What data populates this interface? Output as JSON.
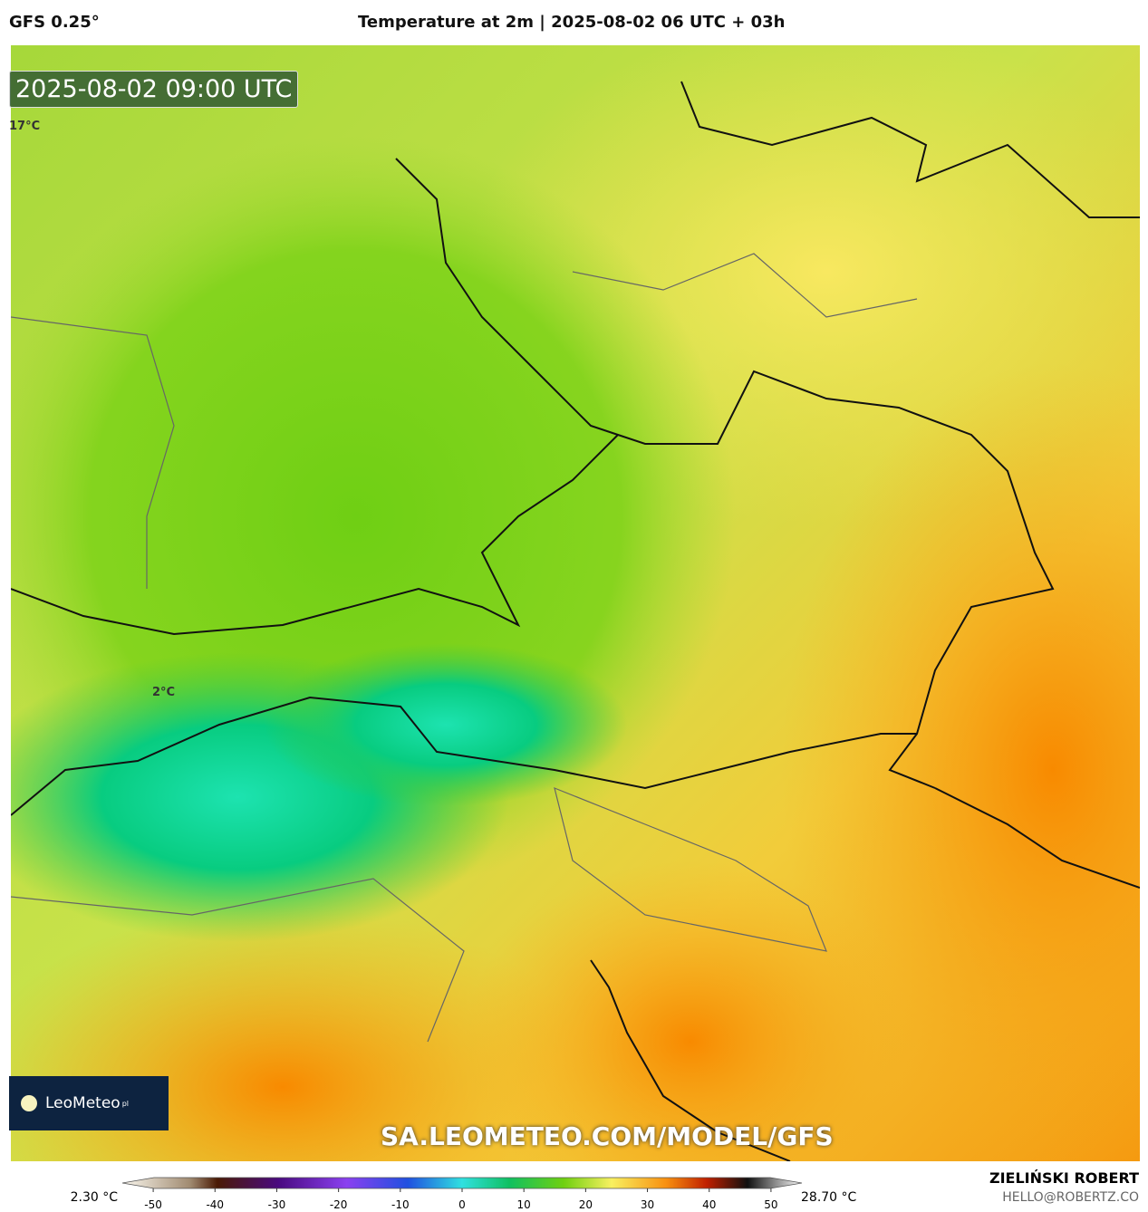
{
  "header": {
    "model": "GFS 0.25°",
    "title": "Temperature at 2m | 2025-08-02 06 UTC + 03h"
  },
  "map": {
    "timestamp": "2025-08-02 09:00 UTC",
    "labels": [
      "17°C",
      "2°C"
    ],
    "watermark": "SA.LEOMETEO.COM/MODEL/GFS",
    "logo": "LeoMeteo",
    "logo_suffix": "pl"
  },
  "colorbar": {
    "min_label": "2.30 °C",
    "max_label": "28.70 °C",
    "range": [
      -55,
      55
    ],
    "ticks": [
      -50,
      -40,
      -30,
      -20,
      -10,
      0,
      10,
      20,
      30,
      40,
      50
    ]
  },
  "credits": {
    "author": "ZIELIŃSKI ROBERT",
    "email": "HELLO@ROBERTZ.CO"
  }
}
